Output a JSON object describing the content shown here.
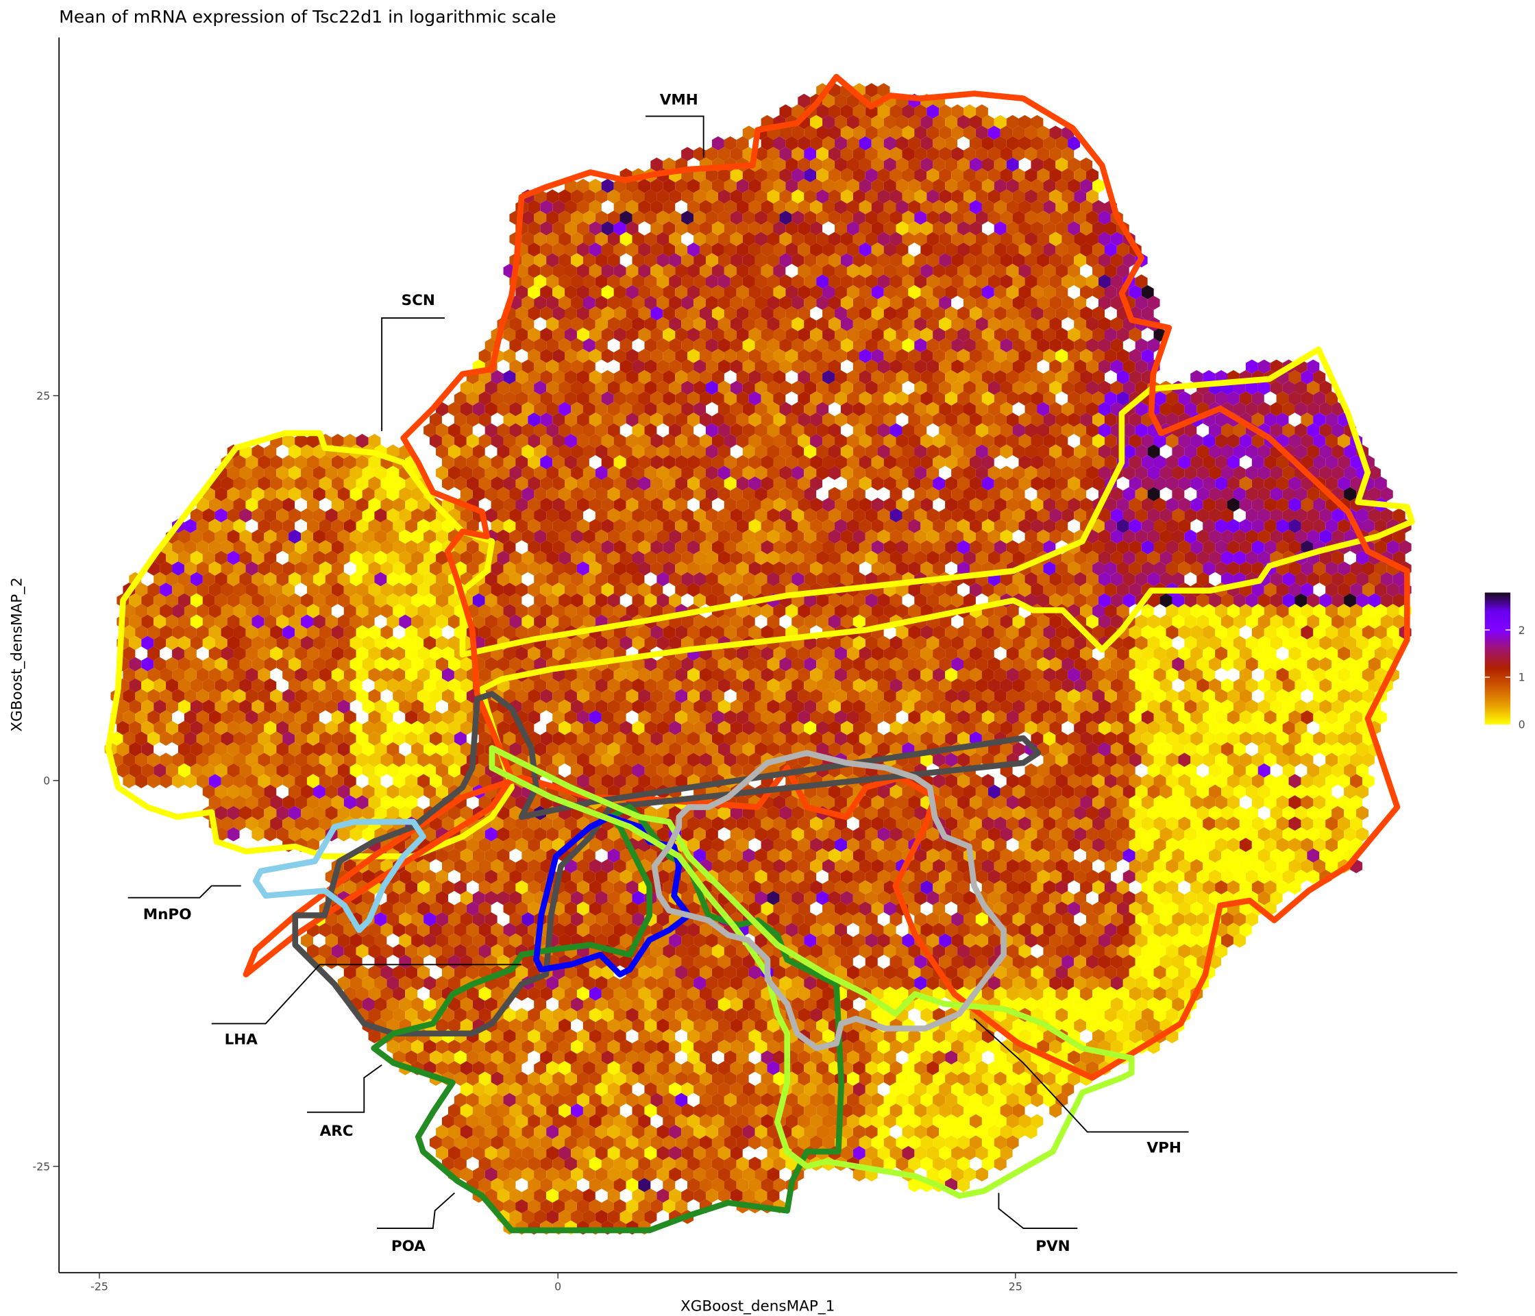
{
  "chart_data": {
    "type": "heatmap",
    "subtype": "hexbin",
    "title": "Mean of mRNA expression of Tsc22d1 in logarithmic scale",
    "xlabel": "XGBoost_densMAP_1",
    "ylabel": "XGBoost_densMAP_2",
    "x_ticks": [
      "-25",
      "0",
      "25"
    ],
    "y_ticks": [
      "25",
      "0",
      "-25"
    ],
    "grid": false,
    "colorbar": {
      "position": "right",
      "range": [
        0,
        2.8
      ],
      "ticks": [
        "2",
        "1",
        "0"
      ],
      "colors": [
        "#ffff00",
        "#e8a000",
        "#d05a00",
        "#b02000",
        "#a01470",
        "#8000ff",
        "#6a00f0",
        "#1a0a1a"
      ]
    },
    "regions": [
      {
        "label": "VMH",
        "color": "#ff4500"
      },
      {
        "label": "SCN",
        "color": "#ffff00"
      },
      {
        "label": "MnPO",
        "color": "#87ceeb"
      },
      {
        "label": "LHA",
        "color": "#4d4d4d"
      },
      {
        "label": "ARC",
        "color": "#0000ff"
      },
      {
        "label": "POA",
        "color": "#228b22"
      },
      {
        "label": "PVN",
        "color": "#adff2f"
      },
      {
        "label": "VPH",
        "color": "#b3b3b3"
      }
    ]
  }
}
